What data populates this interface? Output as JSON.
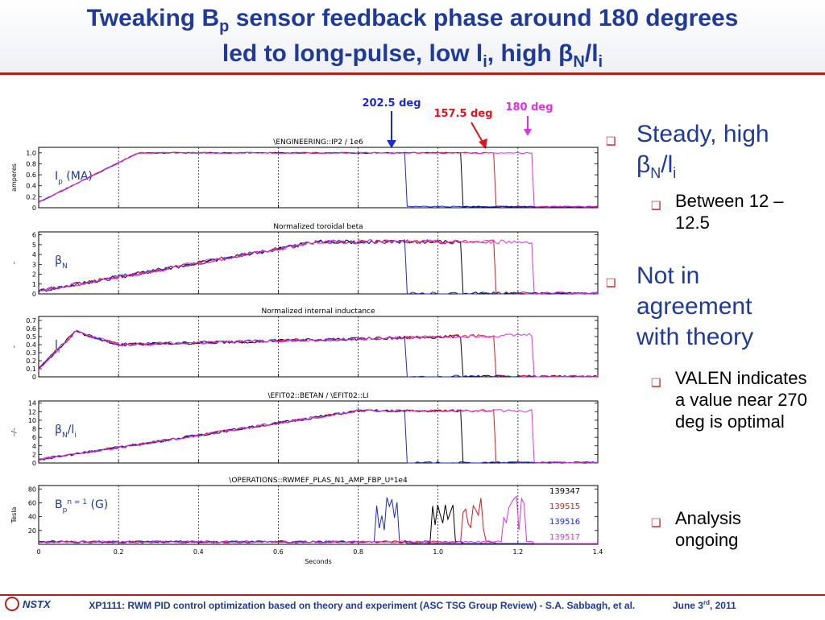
{
  "slide": {
    "title_l1_a": "Tweaking B",
    "title_l1_sub": "p",
    "title_l1_b": " sensor feedback phase around 180 degrees",
    "title_l2_a": "led to long-pulse, low l",
    "title_l2_sub_i": "i",
    "title_l2_b": ", high ",
    "title_l2_beta": "β",
    "title_l2_sub_n": "N",
    "title_l2_c": "/l",
    "title_l2_sub_i2": "i"
  },
  "annotations": {
    "phase_2025": "202.5 deg",
    "phase_1575": "157.5 deg",
    "phase_180": "180 deg"
  },
  "colors": {
    "blue": "#1a2bc8",
    "red": "#e0141e",
    "magenta": "#e030e0",
    "black": "#000000",
    "title_blue": "#1f3a99",
    "accent_red": "#b02020"
  },
  "bullets": {
    "b1_line1": "Steady, high",
    "b1_beta": "β",
    "b1_sub_n": "N",
    "b1_slash": "/l",
    "b1_sub_i": "i",
    "b1a_text": "Between 12 – 12.5",
    "b2_text": "Not in agreement with theory",
    "b2a_text": "VALEN indicates a value near 270 deg is optimal",
    "b2b_text": "Analysis ongoing"
  },
  "footer": {
    "text": "XP1111: RWM PID control optimization based on theory and experiment (ASC TSG Group Review) - S.A. Sabbagh, et al.",
    "date_a": "June 3",
    "date_sup": "rd",
    "date_b": ", 2011",
    "logo": "NSTX"
  },
  "chart_data": [
    {
      "type": "line",
      "title": "\\ENGINEERING::IP2 / 1e6",
      "ylabel": "amperes",
      "panel_label": "I",
      "panel_label_sub": "p",
      "panel_label_unit": " (MA)",
      "y_ticks": [
        "0",
        "0.2",
        "0.4",
        "0.6",
        "0.8",
        "1.0"
      ],
      "ylim": [
        0,
        1.1
      ]
    },
    {
      "type": "line",
      "title": "Normalized toroidal beta",
      "ylabel": "–",
      "panel_label": "β",
      "panel_label_sub": "N",
      "y_ticks": [
        "0",
        "1",
        "2",
        "3",
        "4",
        "5",
        "6"
      ],
      "ylim": [
        0,
        6.3
      ]
    },
    {
      "type": "line",
      "title": "Normalized internal inductance",
      "ylabel": "–",
      "panel_label": "l",
      "panel_label_sub": "i",
      "y_ticks": [
        "0",
        "0.1",
        "0.2",
        "0.3",
        "0.4",
        "0.5",
        "0.6",
        "0.7"
      ],
      "ylim": [
        0,
        0.75
      ]
    },
    {
      "type": "line",
      "title": "\\EFIT02::BETAN / \\EFIT02::LI",
      "ylabel": "–/–",
      "panel_label": "β",
      "panel_label_sub": "N",
      "panel_label_tail": "/l",
      "panel_label_sub2": "i",
      "y_ticks": [
        "0",
        "2",
        "4",
        "6",
        "8",
        "10",
        "12",
        "14"
      ],
      "ylim": [
        0,
        14.5
      ]
    },
    {
      "type": "line",
      "title": "\\OPERATIONS::RWMEF_PLAS_N1_AMP_FBP_U*1e4",
      "ylabel": "Tesla",
      "panel_label": "B",
      "panel_label_sub": "p",
      "panel_label_sup": "n = 1",
      "panel_label_unit": " (G)",
      "y_ticks": [
        "20",
        "40",
        "60",
        "80"
      ],
      "ylim": [
        0,
        85
      ],
      "legend": [
        "139347",
        "139515",
        "139516",
        "139517"
      ]
    }
  ],
  "x_axis": {
    "xlabel": "Seconds",
    "ticks": [
      "0",
      "0.2",
      "0.4",
      "0.6",
      "0.8",
      "1.0",
      "1.2",
      "1.4"
    ],
    "xlim": [
      0,
      1.4
    ],
    "dashed_times": [
      0.2,
      0.4,
      0.6,
      0.8,
      1.0,
      1.2
    ]
  },
  "series_shots": [
    {
      "name": "139347",
      "color": "#000000",
      "t_end": 1.06
    },
    {
      "name": "139515",
      "color": "#e0141e",
      "t_end": 1.14
    },
    {
      "name": "139516",
      "color": "#1a2bc8",
      "t_end": 0.92
    },
    {
      "name": "139517",
      "color": "#e030e0",
      "t_end": 1.24
    }
  ]
}
